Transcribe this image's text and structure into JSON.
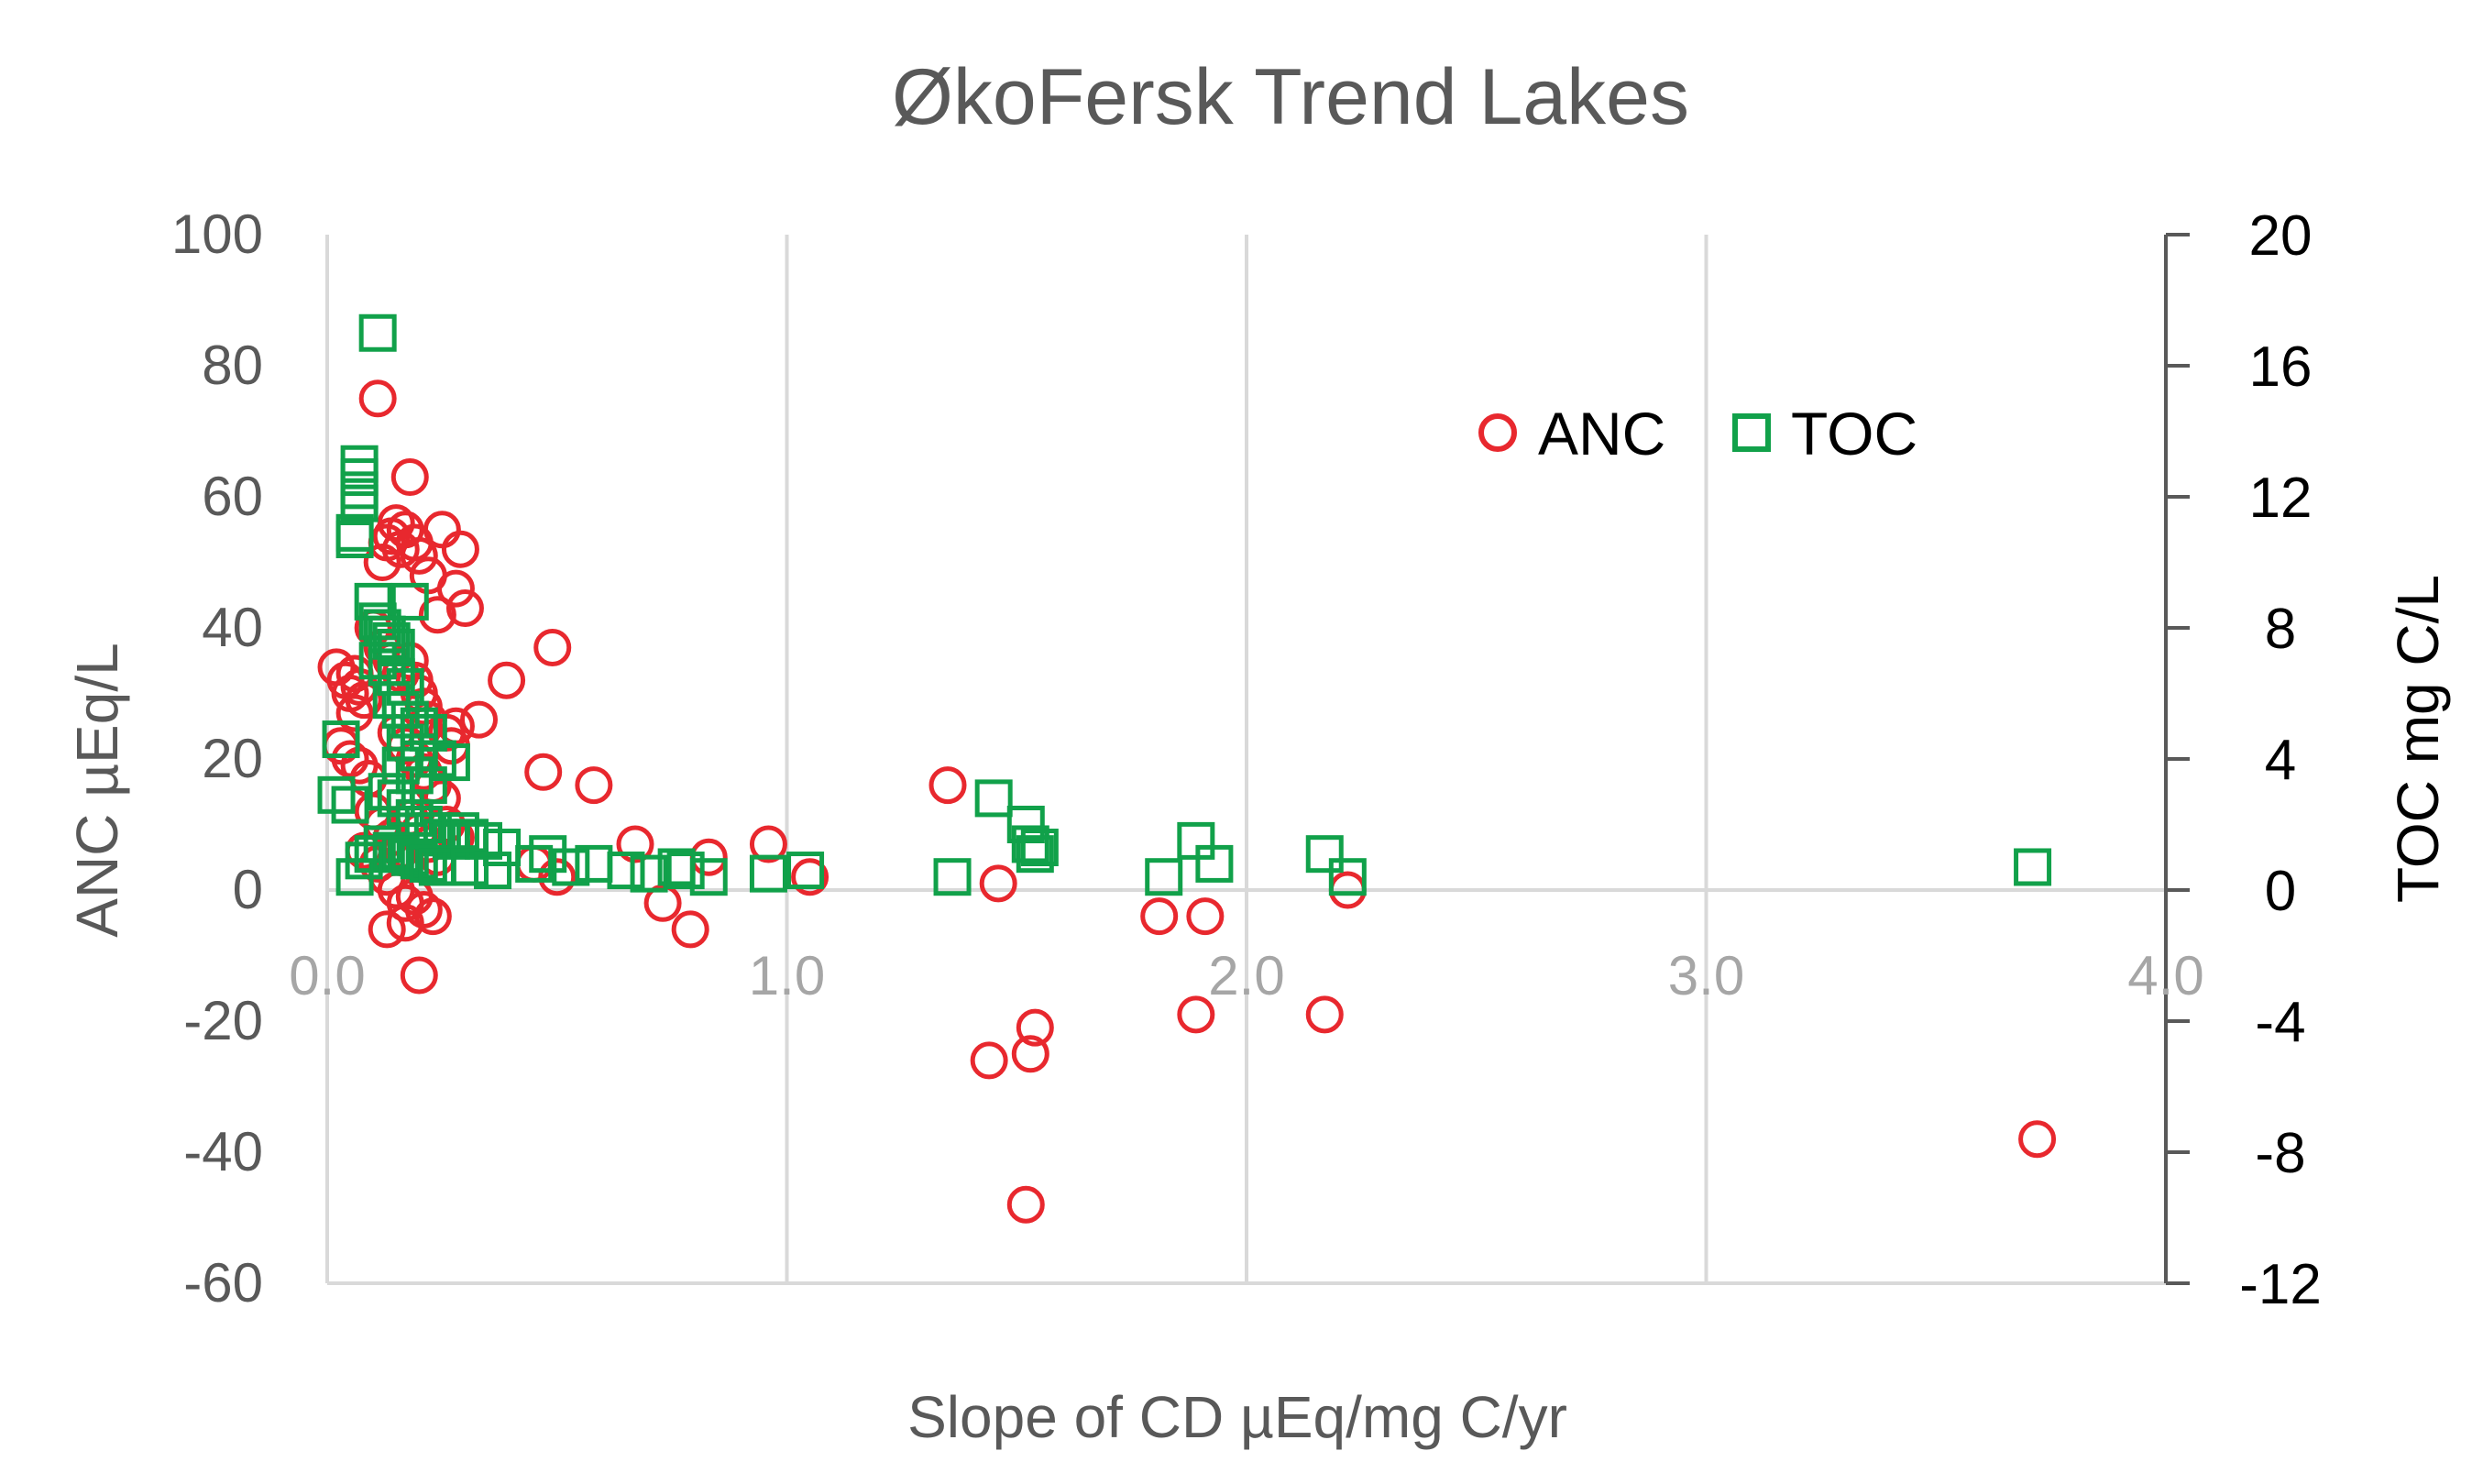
{
  "chart_data": {
    "type": "scatter",
    "title": "ØkoFersk Trend Lakes",
    "xlabel": "Slope of CD µEq/mg C/yr",
    "ylabel": "ANC µEq/L",
    "y2label": "TOC mg C/L",
    "xlim": [
      0,
      4
    ],
    "ylim": [
      -60,
      100
    ],
    "y2lim": [
      -12,
      20
    ],
    "x_ticks": [
      "0.0",
      "1.0",
      "2.0",
      "3.0",
      "4.0"
    ],
    "x_tick_values": [
      0,
      1,
      2,
      3,
      4
    ],
    "y_ticks": [
      "100",
      "80",
      "60",
      "40",
      "20",
      "0",
      "-20",
      "-40",
      "-60"
    ],
    "y_tick_values": [
      100,
      80,
      60,
      40,
      20,
      0,
      -20,
      -40,
      -60
    ],
    "y2_ticks": [
      "20",
      "16",
      "12",
      "8",
      "4",
      "0",
      "-4",
      "-8",
      "-12"
    ],
    "y2_tick_values": [
      20,
      16,
      12,
      8,
      4,
      0,
      -4,
      -8,
      -12
    ],
    "grid": "vertical",
    "legend_position": "top-right",
    "series": [
      {
        "name": "ANC",
        "axis": "left",
        "marker": "circle",
        "color": "#e8282e",
        "points": [
          [
            0.02,
            34
          ],
          [
            0.04,
            32
          ],
          [
            0.05,
            30
          ],
          [
            0.06,
            33
          ],
          [
            0.07,
            31
          ],
          [
            0.08,
            29
          ],
          [
            0.06,
            27
          ],
          [
            0.03,
            22
          ],
          [
            0.05,
            20
          ],
          [
            0.07,
            19
          ],
          [
            0.09,
            17
          ],
          [
            0.11,
            75
          ],
          [
            0.12,
            50
          ],
          [
            0.13,
            53
          ],
          [
            0.14,
            54
          ],
          [
            0.15,
            56
          ],
          [
            0.16,
            52
          ],
          [
            0.17,
            55
          ],
          [
            0.18,
            63
          ],
          [
            0.19,
            53
          ],
          [
            0.2,
            51
          ],
          [
            0.22,
            48
          ],
          [
            0.25,
            55
          ],
          [
            0.28,
            46
          ],
          [
            0.29,
            52
          ],
          [
            0.3,
            43
          ],
          [
            0.24,
            42
          ],
          [
            0.1,
            40
          ],
          [
            0.12,
            37
          ],
          [
            0.14,
            35
          ],
          [
            0.16,
            33
          ],
          [
            0.18,
            35
          ],
          [
            0.19,
            32
          ],
          [
            0.2,
            30
          ],
          [
            0.21,
            28
          ],
          [
            0.22,
            26
          ],
          [
            0.15,
            24
          ],
          [
            0.17,
            22
          ],
          [
            0.19,
            20
          ],
          [
            0.21,
            18
          ],
          [
            0.23,
            16
          ],
          [
            0.25,
            14
          ],
          [
            0.26,
            24
          ],
          [
            0.27,
            22
          ],
          [
            0.28,
            25
          ],
          [
            0.33,
            26
          ],
          [
            0.39,
            32
          ],
          [
            0.47,
            18
          ],
          [
            0.49,
            37
          ],
          [
            0.58,
            16
          ],
          [
            0.1,
            12
          ],
          [
            0.12,
            10
          ],
          [
            0.14,
            8
          ],
          [
            0.16,
            6
          ],
          [
            0.18,
            11
          ],
          [
            0.2,
            9
          ],
          [
            0.22,
            7
          ],
          [
            0.24,
            5
          ],
          [
            0.26,
            10
          ],
          [
            0.28,
            8
          ],
          [
            0.08,
            6
          ],
          [
            0.11,
            4
          ],
          [
            0.13,
            2
          ],
          [
            0.15,
            0
          ],
          [
            0.17,
            -2
          ],
          [
            0.19,
            -1
          ],
          [
            0.21,
            -3
          ],
          [
            0.23,
            -4
          ],
          [
            0.13,
            -6
          ],
          [
            0.17,
            -5
          ],
          [
            0.2,
            -13
          ],
          [
            0.67,
            7
          ],
          [
            0.73,
            -2
          ],
          [
            0.79,
            -6
          ],
          [
            0.83,
            5
          ],
          [
            0.96,
            7
          ],
          [
            1.05,
            2
          ],
          [
            0.5,
            2
          ],
          [
            0.45,
            4
          ],
          [
            1.35,
            16
          ],
          [
            1.44,
            -26
          ],
          [
            1.46,
            1
          ],
          [
            1.52,
            -48
          ],
          [
            1.53,
            -25
          ],
          [
            1.54,
            -21
          ],
          [
            1.81,
            -4
          ],
          [
            1.89,
            -19
          ],
          [
            1.91,
            -4
          ],
          [
            2.17,
            -19
          ],
          [
            2.22,
            0
          ],
          [
            3.72,
            -38
          ]
        ]
      },
      {
        "name": "TOC",
        "axis": "right",
        "marker": "square",
        "color": "#11a14a",
        "points": [
          [
            0.11,
            17
          ],
          [
            0.07,
            13
          ],
          [
            0.07,
            12.6
          ],
          [
            0.07,
            12.2
          ],
          [
            0.07,
            11.8
          ],
          [
            0.06,
            10.9
          ],
          [
            0.06,
            10.7
          ],
          [
            0.1,
            8.8
          ],
          [
            0.18,
            8.8
          ],
          [
            0.11,
            8.2
          ],
          [
            0.12,
            8.0
          ],
          [
            0.13,
            7.8
          ],
          [
            0.14,
            7.6
          ],
          [
            0.15,
            7.4
          ],
          [
            0.11,
            7.0
          ],
          [
            0.13,
            6.8
          ],
          [
            0.15,
            6.5
          ],
          [
            0.17,
            6.2
          ],
          [
            0.14,
            5.8
          ],
          [
            0.16,
            5.5
          ],
          [
            0.18,
            5.2
          ],
          [
            0.2,
            5.0
          ],
          [
            0.22,
            4.8
          ],
          [
            0.17,
            4.5
          ],
          [
            0.2,
            4.2
          ],
          [
            0.24,
            4.0
          ],
          [
            0.16,
            3.8
          ],
          [
            0.19,
            3.5
          ],
          [
            0.22,
            3.2
          ],
          [
            0.27,
            3.9
          ],
          [
            0.03,
            4.6
          ],
          [
            0.02,
            2.9
          ],
          [
            0.05,
            2.6
          ],
          [
            0.13,
            3.0
          ],
          [
            0.15,
            2.8
          ],
          [
            0.17,
            2.5
          ],
          [
            0.19,
            2.2
          ],
          [
            0.21,
            2.0
          ],
          [
            0.23,
            1.8
          ],
          [
            0.25,
            1.6
          ],
          [
            0.27,
            1.5
          ],
          [
            0.29,
            1.8
          ],
          [
            0.31,
            1.6
          ],
          [
            0.34,
            1.5
          ],
          [
            0.38,
            1.3
          ],
          [
            0.12,
            1.4
          ],
          [
            0.14,
            1.2
          ],
          [
            0.16,
            1.1
          ],
          [
            0.18,
            1.0
          ],
          [
            0.2,
            0.9
          ],
          [
            0.22,
            0.8
          ],
          [
            0.24,
            0.7
          ],
          [
            0.1,
            1.1
          ],
          [
            0.08,
            0.9
          ],
          [
            0.06,
            0.4
          ],
          [
            0.31,
            0.7
          ],
          [
            0.36,
            0.6
          ],
          [
            0.45,
            0.8
          ],
          [
            0.48,
            1.1
          ],
          [
            0.53,
            0.7
          ],
          [
            0.58,
            0.8
          ],
          [
            0.65,
            0.6
          ],
          [
            0.7,
            0.5
          ],
          [
            0.76,
            0.7
          ],
          [
            0.78,
            0.6
          ],
          [
            0.83,
            0.4
          ],
          [
            0.96,
            0.5
          ],
          [
            1.04,
            0.6
          ],
          [
            1.36,
            0.4
          ],
          [
            1.45,
            2.8
          ],
          [
            1.52,
            2.0
          ],
          [
            1.53,
            1.4
          ],
          [
            1.54,
            1.1
          ],
          [
            1.55,
            1.3
          ],
          [
            1.82,
            0.4
          ],
          [
            1.89,
            1.5
          ],
          [
            1.93,
            0.8
          ],
          [
            2.17,
            1.1
          ],
          [
            2.22,
            0.4
          ],
          [
            3.71,
            0.7
          ]
        ]
      }
    ]
  }
}
